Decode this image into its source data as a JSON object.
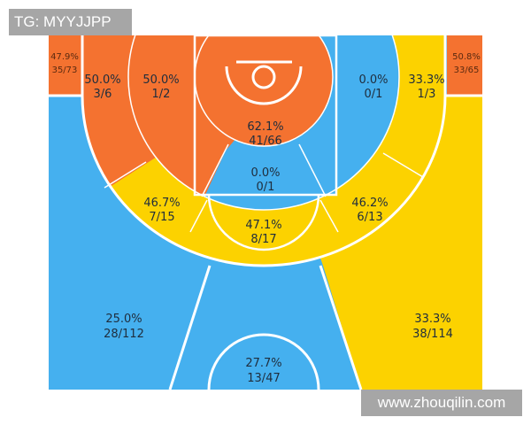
{
  "watermarks": {
    "top_left": "TG: MYYJJPP",
    "bottom_right": "www.zhouqilin.com"
  },
  "colors": {
    "hot": "#f47230",
    "warm": "#fcd200",
    "cold": "#45b0ef",
    "lines": "#ffffff"
  },
  "chart_data": {
    "type": "heatmap",
    "zones": [
      {
        "id": "left-corner-three",
        "pct": "47.9%",
        "shots": "35/73",
        "color": "hot"
      },
      {
        "id": "right-corner-three",
        "pct": "50.8%",
        "shots": "33/65",
        "color": "hot"
      },
      {
        "id": "left-long-baseline",
        "pct": "50.0%",
        "shots": "3/6",
        "color": "hot"
      },
      {
        "id": "left-short-baseline",
        "pct": "50.0%",
        "shots": "1/2",
        "color": "hot"
      },
      {
        "id": "restricted-area",
        "pct": "62.1%",
        "shots": "41/66",
        "color": "hot"
      },
      {
        "id": "right-short-baseline",
        "pct": "0.0%",
        "shots": "0/1",
        "color": "cold"
      },
      {
        "id": "right-long-baseline",
        "pct": "33.3%",
        "shots": "1/3",
        "color": "warm"
      },
      {
        "id": "paint-non-ra",
        "pct": "0.0%",
        "shots": "0/1",
        "color": "cold"
      },
      {
        "id": "left-long-wing",
        "pct": "46.7%",
        "shots": "7/15",
        "color": "warm"
      },
      {
        "id": "top-long",
        "pct": "47.1%",
        "shots": "8/17",
        "color": "warm"
      },
      {
        "id": "right-long-wing",
        "pct": "46.2%",
        "shots": "6/13",
        "color": "warm"
      },
      {
        "id": "left-wing-three",
        "pct": "25.0%",
        "shots": "28/112",
        "color": "cold"
      },
      {
        "id": "top-three",
        "pct": "27.7%",
        "shots": "13/47",
        "color": "cold"
      },
      {
        "id": "right-wing-three",
        "pct": "33.3%",
        "shots": "38/114",
        "color": "warm"
      }
    ]
  }
}
